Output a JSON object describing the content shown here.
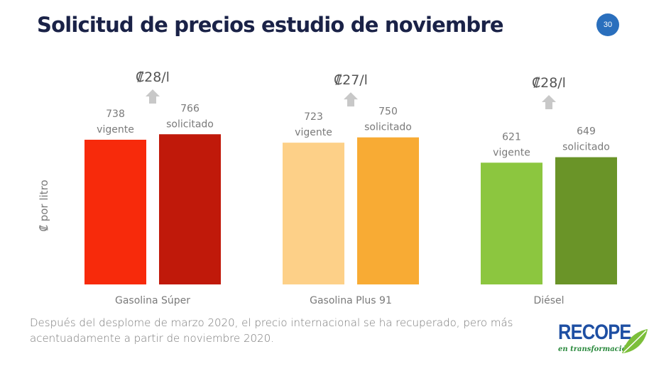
{
  "slide": {
    "title": "Solicitud de precios estudio de noviembre",
    "page_number": "30",
    "caption": "Después del desplome de marzo 2020, el precio internacional se ha recuperado, pero más acentuadamente a partir de noviembre 2020.",
    "logo": {
      "main": "RECOPE",
      "sub": "en transformación"
    }
  },
  "chart_data": {
    "type": "bar",
    "title": "",
    "xlabel": "",
    "ylabel": "₡ por litro",
    "ylim": [
      0,
      1450
    ],
    "grid": false,
    "categories": [
      "Gasolina Súper",
      "Gasolina Plus 91",
      "Diésel"
    ],
    "series": [
      {
        "name": "vigente",
        "values": [
          738,
          723,
          621
        ],
        "colors": [
          "#f72a0b",
          "#fdd088",
          "#8cc63f"
        ]
      },
      {
        "name": "solicitado",
        "values": [
          766,
          750,
          649
        ],
        "colors": [
          "#c0190a",
          "#f8ab34",
          "#6a9428"
        ]
      }
    ],
    "increase_annotations": [
      "₡28/l",
      "₡27/l",
      "₡28/l"
    ],
    "arrow_color": "#c8c8c8"
  }
}
